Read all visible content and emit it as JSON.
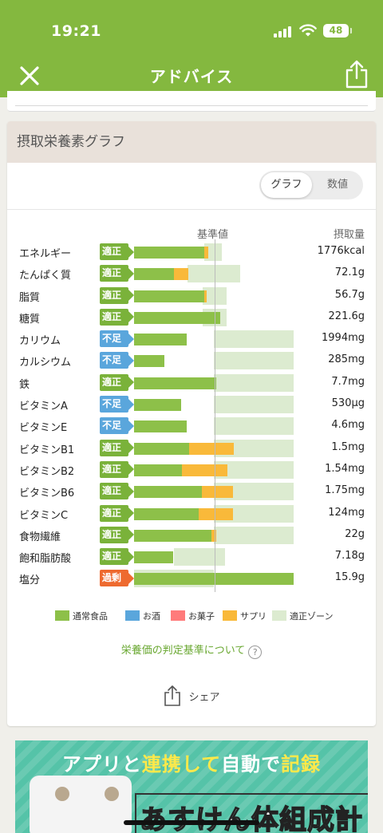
{
  "status": {
    "time": "19:21",
    "battery": "48"
  },
  "app": {
    "title": "アドバイス"
  },
  "card": {
    "title": "摂取栄養素グラフ",
    "toggle": {
      "graph": "グラフ",
      "numeric": "数値"
    },
    "header_standard": "基準値",
    "header_intake": "摂取量"
  },
  "colors": {
    "regular": "#8dc049",
    "alcohol": "#5aa6dc",
    "snack": "#ff7b7b",
    "supplement": "#f9b93a",
    "zone": "#dcebd0"
  },
  "nutrients": [
    {
      "name": "エネルギー",
      "status": "適正",
      "kind": "ok",
      "value": "1776kcal",
      "zone": [
        0.88,
        1.1
      ],
      "segs": [
        [
          "regular",
          0.88
        ],
        [
          "supplement",
          0.05
        ]
      ]
    },
    {
      "name": "たんぱく質",
      "status": "適正",
      "kind": "ok",
      "value": "72.1g",
      "zone": [
        0.67,
        1.33
      ],
      "segs": [
        [
          "regular",
          0.5
        ],
        [
          "supplement",
          0.18
        ]
      ]
    },
    {
      "name": "脂質",
      "status": "適正",
      "kind": "ok",
      "value": "56.7g",
      "zone": [
        0.86,
        1.16
      ],
      "segs": [
        [
          "regular",
          0.88
        ],
        [
          "supplement",
          0.03
        ]
      ]
    },
    {
      "name": "糖質",
      "status": "適正",
      "kind": "ok",
      "value": "221.6g",
      "zone": [
        0.86,
        1.16
      ],
      "segs": [
        [
          "regular",
          1.08
        ]
      ]
    },
    {
      "name": "カリウム",
      "status": "不足",
      "kind": "low",
      "value": "1994mg",
      "zone": [
        1.0,
        2.0
      ],
      "segs": [
        [
          "regular",
          0.66
        ]
      ]
    },
    {
      "name": "カルシウム",
      "status": "不足",
      "kind": "low",
      "value": "285mg",
      "zone": [
        1.0,
        2.0
      ],
      "segs": [
        [
          "regular",
          0.38
        ]
      ]
    },
    {
      "name": "鉄",
      "status": "適正",
      "kind": "ok",
      "value": "7.7mg",
      "zone": [
        1.0,
        2.0
      ],
      "segs": [
        [
          "regular",
          1.03
        ]
      ]
    },
    {
      "name": "ビタミンA",
      "status": "不足",
      "kind": "low",
      "value": "530µg",
      "zone": [
        1.0,
        2.0
      ],
      "segs": [
        [
          "regular",
          0.59
        ]
      ]
    },
    {
      "name": "ビタミンE",
      "status": "不足",
      "kind": "low",
      "value": "4.6mg",
      "zone": [
        1.0,
        2.0
      ],
      "segs": [
        [
          "regular",
          0.66
        ]
      ]
    },
    {
      "name": "ビタミンB1",
      "status": "適正",
      "kind": "ok",
      "value": "1.5mg",
      "zone": [
        1.0,
        2.0
      ],
      "segs": [
        [
          "regular",
          0.69
        ],
        [
          "supplement",
          0.56
        ]
      ]
    },
    {
      "name": "ビタミンB2",
      "status": "適正",
      "kind": "ok",
      "value": "1.54mg",
      "zone": [
        1.0,
        2.0
      ],
      "segs": [
        [
          "regular",
          0.6
        ],
        [
          "supplement",
          0.57
        ]
      ]
    },
    {
      "name": "ビタミンB6",
      "status": "適正",
      "kind": "ok",
      "value": "1.75mg",
      "zone": [
        1.0,
        2.0
      ],
      "segs": [
        [
          "regular",
          0.85
        ],
        [
          "supplement",
          0.39
        ]
      ]
    },
    {
      "name": "ビタミンC",
      "status": "適正",
      "kind": "ok",
      "value": "124mg",
      "zone": [
        1.0,
        2.0
      ],
      "segs": [
        [
          "regular",
          0.81
        ],
        [
          "supplement",
          0.43
        ]
      ]
    },
    {
      "name": "食物繊維",
      "status": "適正",
      "kind": "ok",
      "value": "22g",
      "zone": [
        1.0,
        2.0
      ],
      "segs": [
        [
          "regular",
          0.97
        ],
        [
          "supplement",
          0.06
        ]
      ]
    },
    {
      "name": "飽和脂肪酸",
      "status": "適正",
      "kind": "ok",
      "value": "7.18g",
      "zone": [
        0.5,
        1.14
      ],
      "segs": [
        [
          "regular",
          0.49
        ]
      ]
    },
    {
      "name": "塩分",
      "status": "過剰",
      "kind": "over",
      "value": "15.9g",
      "zone": [
        0.0,
        1.0
      ],
      "segs": [
        [
          "regular",
          2.0
        ]
      ]
    }
  ],
  "legend": [
    {
      "key": "regular",
      "label": "通常食品"
    },
    {
      "key": "alcohol",
      "label": "お酒"
    },
    {
      "key": "snack",
      "label": "お菓子"
    },
    {
      "key": "supplement",
      "label": "サプリ"
    },
    {
      "key": "zone",
      "label": "適正ゾーン"
    }
  ],
  "criteria_link": "栄養価の判定基準について",
  "criteria_qmark": "?",
  "share_label": "シェア",
  "banner": {
    "line1_a": "アプリと",
    "line1_b": "連携して",
    "line1_c": "自動で",
    "line1_d": "記録",
    "line2": "あすけん体組成計"
  }
}
